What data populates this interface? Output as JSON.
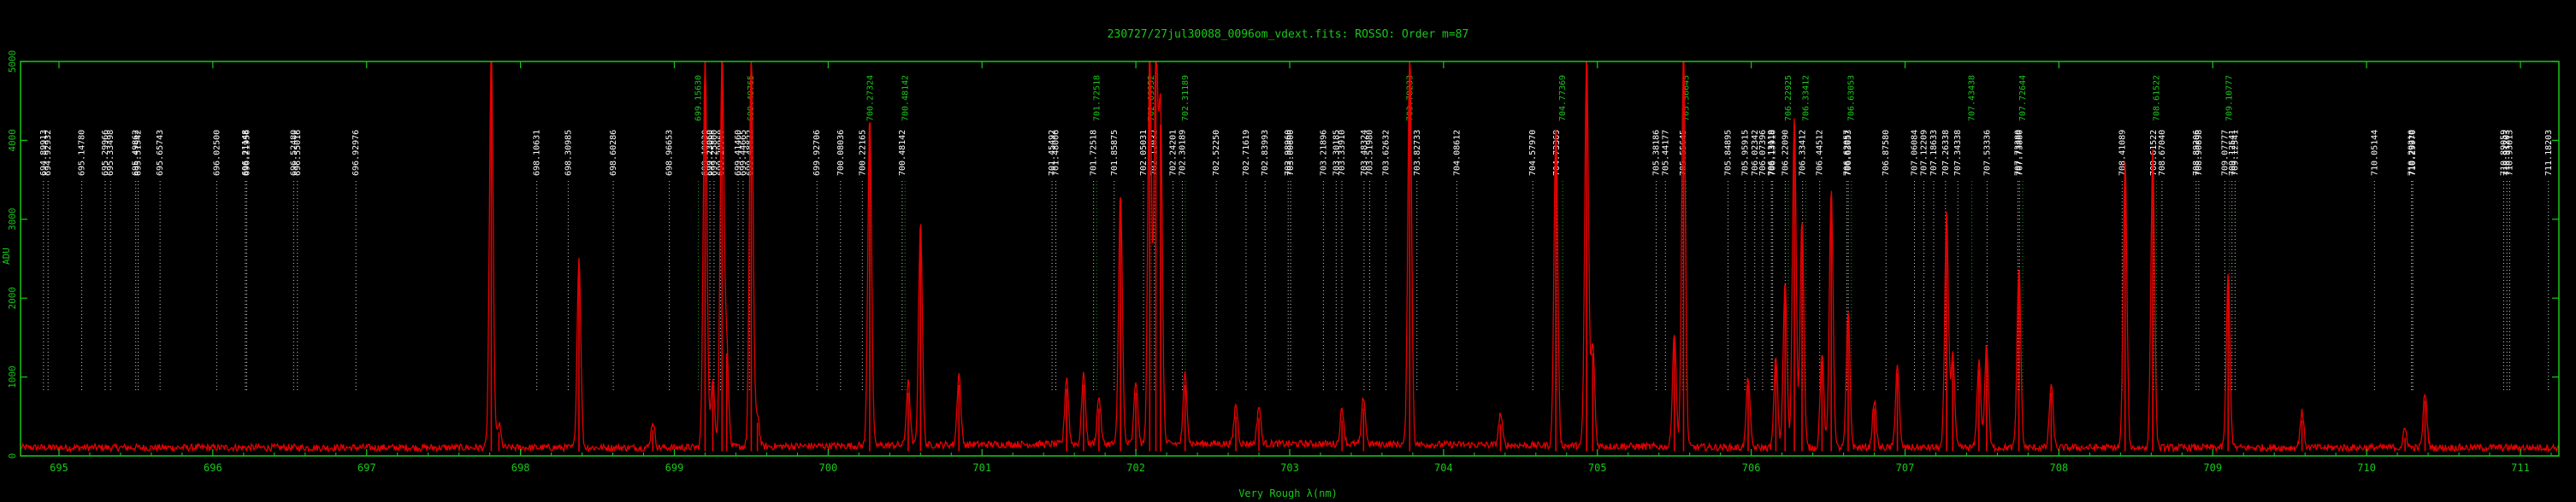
{
  "chart_data": {
    "type": "line",
    "title": "230727/27jul30088_0096om_vdext.fits: ROSSO: Order m=87",
    "xlabel": "Very Rough λ(nm)",
    "ylabel": "ADU",
    "xlim": [
      694.75,
      711.25
    ],
    "ylim": [
      0,
      5000
    ],
    "x_ticks": [
      "695",
      "696",
      "697",
      "698",
      "699",
      "700",
      "701",
      "702",
      "703",
      "704",
      "705",
      "706",
      "707",
      "708",
      "709",
      "710",
      "711"
    ],
    "y_ticks": [
      "0",
      "1000",
      "2000",
      "3000",
      "4000",
      "5000"
    ],
    "grid": false,
    "colors": {
      "axis": "#19c819",
      "spectrum": "#e60000",
      "marker_white": "#ffffff",
      "marker_green": "#19c819"
    },
    "baseline": 60,
    "peaks": [
      {
        "x": 697.81,
        "y": 5000
      },
      {
        "x": 697.86,
        "y": 300
      },
      {
        "x": 698.38,
        "y": 2400
      },
      {
        "x": 698.86,
        "y": 330
      },
      {
        "x": 699.2,
        "y": 5000
      },
      {
        "x": 699.25,
        "y": 900
      },
      {
        "x": 699.31,
        "y": 5000
      },
      {
        "x": 699.34,
        "y": 1300
      },
      {
        "x": 699.5,
        "y": 5000
      },
      {
        "x": 699.54,
        "y": 420
      },
      {
        "x": 700.27,
        "y": 4200
      },
      {
        "x": 700.52,
        "y": 800
      },
      {
        "x": 700.6,
        "y": 2850
      },
      {
        "x": 700.85,
        "y": 900
      },
      {
        "x": 701.55,
        "y": 850
      },
      {
        "x": 701.66,
        "y": 900
      },
      {
        "x": 701.76,
        "y": 600
      },
      {
        "x": 701.9,
        "y": 3200
      },
      {
        "x": 702.0,
        "y": 800
      },
      {
        "x": 702.09,
        "y": 5000
      },
      {
        "x": 702.13,
        "y": 5000
      },
      {
        "x": 702.16,
        "y": 4200
      },
      {
        "x": 702.32,
        "y": 900
      },
      {
        "x": 702.65,
        "y": 500
      },
      {
        "x": 702.8,
        "y": 480
      },
      {
        "x": 703.34,
        "y": 450
      },
      {
        "x": 703.48,
        "y": 600
      },
      {
        "x": 703.78,
        "y": 5000
      },
      {
        "x": 704.37,
        "y": 400
      },
      {
        "x": 704.73,
        "y": 4100
      },
      {
        "x": 704.93,
        "y": 5000
      },
      {
        "x": 704.97,
        "y": 1300
      },
      {
        "x": 705.5,
        "y": 1450
      },
      {
        "x": 705.56,
        "y": 5000
      },
      {
        "x": 705.98,
        "y": 900
      },
      {
        "x": 706.16,
        "y": 1150
      },
      {
        "x": 706.22,
        "y": 2100
      },
      {
        "x": 706.28,
        "y": 4200
      },
      {
        "x": 706.33,
        "y": 2900
      },
      {
        "x": 706.46,
        "y": 1200
      },
      {
        "x": 706.52,
        "y": 3300
      },
      {
        "x": 706.63,
        "y": 1700
      },
      {
        "x": 706.8,
        "y": 600
      },
      {
        "x": 706.95,
        "y": 1050
      },
      {
        "x": 707.27,
        "y": 2950
      },
      {
        "x": 707.31,
        "y": 1200
      },
      {
        "x": 707.48,
        "y": 1100
      },
      {
        "x": 707.53,
        "y": 1300
      },
      {
        "x": 707.74,
        "y": 2300
      },
      {
        "x": 707.95,
        "y": 800
      },
      {
        "x": 708.43,
        "y": 3600
      },
      {
        "x": 708.61,
        "y": 3750
      },
      {
        "x": 709.1,
        "y": 2200
      },
      {
        "x": 709.58,
        "y": 450
      },
      {
        "x": 710.25,
        "y": 230
      },
      {
        "x": 710.38,
        "y": 700
      }
    ],
    "line_ids": [
      {
        "label": "694.89913",
        "x": 694.899,
        "color": "white"
      },
      {
        "label": "694.92932",
        "x": 694.929,
        "color": "white"
      },
      {
        "label": "695.14780",
        "x": 695.148,
        "color": "white"
      },
      {
        "label": "695.29966",
        "x": 695.3,
        "color": "white"
      },
      {
        "label": "695.33498",
        "x": 695.335,
        "color": "white"
      },
      {
        "label": "695.49862",
        "x": 695.499,
        "color": "white"
      },
      {
        "label": "695.51542",
        "x": 695.515,
        "color": "white"
      },
      {
        "label": "695.65743",
        "x": 695.657,
        "color": "white"
      },
      {
        "label": "696.02500",
        "x": 696.025,
        "color": "white"
      },
      {
        "label": "696.21148",
        "x": 696.211,
        "color": "white"
      },
      {
        "label": "696.21956",
        "x": 696.22,
        "color": "white"
      },
      {
        "label": "696.52480",
        "x": 696.525,
        "color": "white"
      },
      {
        "label": "696.55016",
        "x": 696.55,
        "color": "white"
      },
      {
        "label": "696.92976",
        "x": 696.93,
        "color": "white"
      },
      {
        "label": "698.10631",
        "x": 698.106,
        "color": "white"
      },
      {
        "label": "698.30985",
        "x": 698.31,
        "color": "white"
      },
      {
        "label": "698.60286",
        "x": 698.603,
        "color": "white"
      },
      {
        "label": "698.96653",
        "x": 698.967,
        "color": "white"
      },
      {
        "label": "699.15630",
        "x": 699.156,
        "color": "green"
      },
      {
        "label": "699.19930",
        "x": 699.199,
        "color": "white"
      },
      {
        "label": "699.23060",
        "x": 699.231,
        "color": "white"
      },
      {
        "label": "699.25800",
        "x": 699.258,
        "color": "white"
      },
      {
        "label": "699.29960",
        "x": 699.3,
        "color": "white"
      },
      {
        "label": "699.41460",
        "x": 699.415,
        "color": "white"
      },
      {
        "label": "699.44665",
        "x": 699.447,
        "color": "white"
      },
      {
        "label": "699.48822",
        "x": 699.488,
        "color": "white"
      },
      {
        "label": "699.49765",
        "x": 699.498,
        "color": "green"
      },
      {
        "label": "699.92706",
        "x": 699.927,
        "color": "white"
      },
      {
        "label": "700.08036",
        "x": 700.08,
        "color": "white"
      },
      {
        "label": "700.22165",
        "x": 700.222,
        "color": "white"
      },
      {
        "label": "700.27324",
        "x": 700.273,
        "color": "green"
      },
      {
        "label": "700.48142",
        "x": 700.481,
        "color": "white"
      },
      {
        "label": "700.48142",
        "x": 700.5,
        "color": "green"
      },
      {
        "label": "701.45492",
        "x": 701.455,
        "color": "white"
      },
      {
        "label": "701.48006",
        "x": 701.48,
        "color": "white"
      },
      {
        "label": "701.72518",
        "x": 701.725,
        "color": "white"
      },
      {
        "label": "701.72518",
        "x": 701.745,
        "color": "green"
      },
      {
        "label": "701.85875",
        "x": 701.859,
        "color": "white"
      },
      {
        "label": "702.05031",
        "x": 702.05,
        "color": "white"
      },
      {
        "label": "702.09952",
        "x": 702.1,
        "color": "green"
      },
      {
        "label": "702.12032",
        "x": 702.12,
        "color": "white"
      },
      {
        "label": "702.24201",
        "x": 702.242,
        "color": "white"
      },
      {
        "label": "702.30189",
        "x": 702.302,
        "color": "white"
      },
      {
        "label": "702.31189",
        "x": 702.322,
        "color": "green"
      },
      {
        "label": "702.52250",
        "x": 702.523,
        "color": "white"
      },
      {
        "label": "702.71619",
        "x": 702.716,
        "color": "white"
      },
      {
        "label": "702.83993",
        "x": 702.84,
        "color": "white"
      },
      {
        "label": "702.98960",
        "x": 702.99,
        "color": "white"
      },
      {
        "label": "703.00600",
        "x": 703.006,
        "color": "white"
      },
      {
        "label": "703.21896",
        "x": 703.219,
        "color": "white"
      },
      {
        "label": "703.30185",
        "x": 703.302,
        "color": "white"
      },
      {
        "label": "703.33910",
        "x": 703.339,
        "color": "white"
      },
      {
        "label": "703.48324",
        "x": 703.483,
        "color": "white"
      },
      {
        "label": "703.51980",
        "x": 703.52,
        "color": "white"
      },
      {
        "label": "703.62632",
        "x": 703.626,
        "color": "white"
      },
      {
        "label": "703.78233",
        "x": 703.782,
        "color": "green"
      },
      {
        "label": "703.82733",
        "x": 703.827,
        "color": "white"
      },
      {
        "label": "704.08612",
        "x": 704.086,
        "color": "white"
      },
      {
        "label": "704.57970",
        "x": 704.58,
        "color": "white"
      },
      {
        "label": "704.73369",
        "x": 704.734,
        "color": "white"
      },
      {
        "label": "704.77369",
        "x": 704.774,
        "color": "green"
      },
      {
        "label": "705.38186",
        "x": 705.382,
        "color": "white"
      },
      {
        "label": "705.44177",
        "x": 705.442,
        "color": "white"
      },
      {
        "label": "705.55645",
        "x": 705.556,
        "color": "white"
      },
      {
        "label": "705.56645",
        "x": 705.576,
        "color": "green"
      },
      {
        "label": "705.84895",
        "x": 705.849,
        "color": "white"
      },
      {
        "label": "705.95915",
        "x": 705.959,
        "color": "white"
      },
      {
        "label": "706.02342",
        "x": 706.023,
        "color": "white"
      },
      {
        "label": "706.07396",
        "x": 706.074,
        "color": "white"
      },
      {
        "label": "706.13119",
        "x": 706.131,
        "color": "white"
      },
      {
        "label": "706.13916",
        "x": 706.139,
        "color": "white"
      },
      {
        "label": "706.22090",
        "x": 706.221,
        "color": "white"
      },
      {
        "label": "706.22925",
        "x": 706.241,
        "color": "green"
      },
      {
        "label": "706.33412",
        "x": 706.334,
        "color": "white"
      },
      {
        "label": "706.33412",
        "x": 706.354,
        "color": "green"
      },
      {
        "label": "706.44512",
        "x": 706.445,
        "color": "white"
      },
      {
        "label": "706.62057",
        "x": 706.621,
        "color": "white"
      },
      {
        "label": "706.63053",
        "x": 706.631,
        "color": "white"
      },
      {
        "label": "706.63053",
        "x": 706.651,
        "color": "green"
      },
      {
        "label": "706.87580",
        "x": 706.876,
        "color": "white"
      },
      {
        "label": "707.06084",
        "x": 707.061,
        "color": "white"
      },
      {
        "label": "707.12209",
        "x": 707.122,
        "color": "white"
      },
      {
        "label": "707.18633",
        "x": 707.186,
        "color": "white"
      },
      {
        "label": "707.26338",
        "x": 707.263,
        "color": "white"
      },
      {
        "label": "707.34338",
        "x": 707.343,
        "color": "white"
      },
      {
        "label": "707.43438",
        "x": 707.434,
        "color": "green"
      },
      {
        "label": "707.53336",
        "x": 707.533,
        "color": "white"
      },
      {
        "label": "707.73380",
        "x": 707.734,
        "color": "white"
      },
      {
        "label": "707.73880",
        "x": 707.744,
        "color": "white"
      },
      {
        "label": "707.72644",
        "x": 707.764,
        "color": "green"
      },
      {
        "label": "708.41089",
        "x": 708.411,
        "color": "white"
      },
      {
        "label": "708.61522",
        "x": 708.615,
        "color": "white"
      },
      {
        "label": "708.61522",
        "x": 708.635,
        "color": "green"
      },
      {
        "label": "708.67040",
        "x": 708.67,
        "color": "white"
      },
      {
        "label": "708.89206",
        "x": 708.892,
        "color": "white"
      },
      {
        "label": "708.90898",
        "x": 708.909,
        "color": "white"
      },
      {
        "label": "709.07777",
        "x": 709.078,
        "color": "white"
      },
      {
        "label": "709.10777",
        "x": 709.108,
        "color": "green"
      },
      {
        "label": "709.12541",
        "x": 709.125,
        "color": "white"
      },
      {
        "label": "709.12541",
        "x": 709.145,
        "color": "white"
      },
      {
        "label": "710.05144",
        "x": 710.051,
        "color": "white"
      },
      {
        "label": "710.29210",
        "x": 710.292,
        "color": "white"
      },
      {
        "label": "710.29970",
        "x": 710.3,
        "color": "white"
      },
      {
        "label": "710.89059",
        "x": 710.891,
        "color": "white"
      },
      {
        "label": "710.91203",
        "x": 710.912,
        "color": "white"
      },
      {
        "label": "710.93013",
        "x": 710.93,
        "color": "white"
      },
      {
        "label": "711.18203",
        "x": 711.182,
        "color": "white"
      }
    ]
  }
}
